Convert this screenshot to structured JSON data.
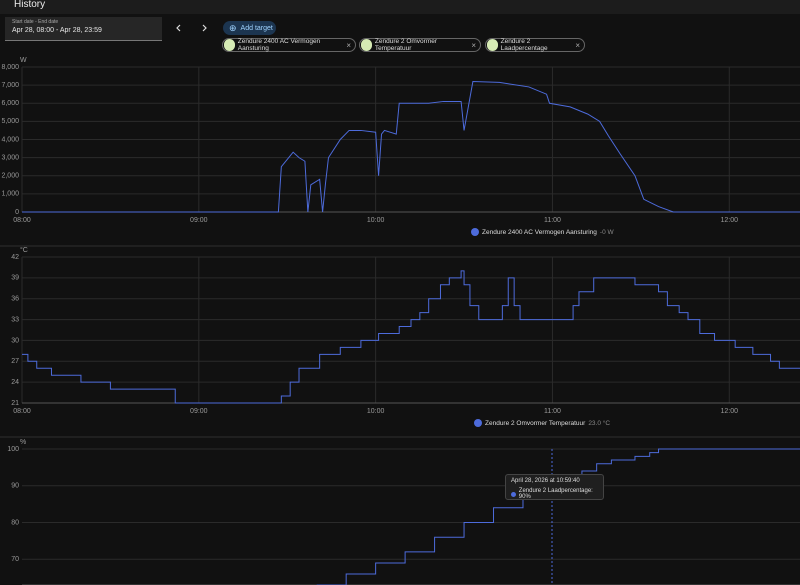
{
  "header": {
    "title": "History"
  },
  "date_picker": {
    "label": "Start date - End date",
    "value": "Apr 28, 08:00 - Apr 28, 23:59"
  },
  "add_target": "Add target",
  "targets": [
    "Zendure 2400 AC Vermogen Aansturing",
    "Zendure 2 Omvormer Temperatuur",
    "Zendure 2 Laadpercentage"
  ],
  "chart_data": [
    {
      "type": "line",
      "y_label": "W",
      "step": false,
      "grid": true,
      "x": [
        "08:00",
        "09:27",
        "09:28",
        "09:32",
        "09:34",
        "09:36",
        "09:37",
        "09:38",
        "09:41",
        "09:42",
        "09:43",
        "09:44",
        "09:48",
        "09:51",
        "09:55",
        "10:00",
        "10:01",
        "10:02",
        "10:03",
        "10:07",
        "10:08",
        "10:18",
        "10:23",
        "10:29",
        "10:30",
        "10:33",
        "10:42",
        "10:52",
        "10:58",
        "10:59",
        "11:06",
        "11:12",
        "11:16",
        "11:19",
        "11:23",
        "11:28",
        "11:31",
        "11:36",
        "11:41",
        "12:24"
      ],
      "series": [
        {
          "name": "Zendure 2400 AC Vermogen Aansturing",
          "state": "-0 W",
          "color": "#4d6bdb",
          "values": [
            0,
            0,
            2500,
            3300,
            3000,
            2800,
            0,
            1500,
            1800,
            0,
            1600,
            3000,
            4000,
            4500,
            4500,
            4400,
            2000,
            4300,
            4500,
            4300,
            6000,
            6000,
            6100,
            6100,
            4500,
            7200,
            7150,
            6900,
            6500,
            6000,
            5800,
            5400,
            5000,
            4200,
            3200,
            2000,
            700,
            300,
            0,
            0
          ]
        }
      ],
      "xlim": [
        "08:00",
        "12:24"
      ],
      "xticks": [
        "08:00",
        "09:00",
        "10:00",
        "11:00",
        "12:00"
      ],
      "ylim": [
        0,
        8000
      ],
      "yticks": [
        0,
        {
          "value": 1000,
          "label": "1,000"
        },
        {
          "value": 2000,
          "label": "2,000"
        },
        {
          "value": 3000,
          "label": "3,000"
        },
        {
          "value": 4000,
          "label": "4,000"
        },
        {
          "value": 5000,
          "label": "5,000"
        },
        {
          "value": 6000,
          "label": "6,000"
        },
        {
          "value": 7000,
          "label": "7,000"
        },
        {
          "value": 8000,
          "label": "8,000"
        }
      ]
    },
    {
      "type": "line",
      "y_label": "°C",
      "step": true,
      "grid": true,
      "x": [
        "08:00",
        "08:02",
        "08:05",
        "08:10",
        "08:20",
        "08:30",
        "08:52",
        "09:27",
        "09:28",
        "09:31",
        "09:34",
        "09:41",
        "09:48",
        "09:55",
        "10:01",
        "10:08",
        "10:12",
        "10:15",
        "10:18",
        "10:22",
        "10:25",
        "10:29",
        "10:30",
        "10:32",
        "10:35",
        "10:41",
        "10:43",
        "10:45",
        "10:47",
        "10:49",
        "11:06",
        "11:07",
        "11:09",
        "11:14",
        "11:23",
        "11:28",
        "11:36",
        "11:39",
        "11:43",
        "11:46",
        "11:50",
        "11:55",
        "12:02",
        "12:08",
        "12:14",
        "12:17",
        "12:24"
      ],
      "series": [
        {
          "name": "Zendure 2 Omvormer Temperatuur",
          "state": "23.0 °C",
          "color": "#4d6bdb",
          "values": [
            28,
            27,
            26,
            25,
            24,
            23,
            21,
            21,
            22,
            24,
            26,
            28,
            29,
            30,
            31,
            32,
            33,
            34,
            36,
            38,
            39,
            40,
            38,
            35,
            33,
            33,
            35,
            39,
            35,
            33,
            33,
            35,
            37,
            39,
            39,
            38,
            37,
            35,
            34,
            33,
            31,
            30,
            29,
            28,
            27,
            26,
            26
          ]
        }
      ],
      "xlim": [
        "08:00",
        "12:24"
      ],
      "xticks": [
        "08:00",
        "09:00",
        "10:00",
        "11:00",
        "12:00"
      ],
      "ylim": [
        21,
        42
      ],
      "yticks": [
        21,
        24,
        27,
        30,
        33,
        36,
        39,
        42
      ]
    },
    {
      "type": "line",
      "y_label": "%",
      "step": true,
      "grid": true,
      "color": "#4d6bdb",
      "x": [
        "09:40",
        "09:50",
        "10:00",
        "10:10",
        "10:20",
        "10:30",
        "10:40",
        "10:50",
        "11:00",
        "11:05",
        "11:10",
        "11:15",
        "11:20",
        "11:28",
        "11:33",
        "11:36",
        "12:24"
      ],
      "values": [
        63,
        66,
        69,
        72,
        76,
        80,
        84,
        87,
        90,
        92,
        94,
        96,
        97,
        98,
        99,
        100,
        100
      ],
      "xlim": [
        "08:00",
        "12:24"
      ],
      "ylim": [
        63,
        100
      ],
      "yticks": [
        70,
        80,
        90,
        100
      ]
    }
  ],
  "tooltip": {
    "title": "April 28, 2026 at 10:59:40",
    "text": "Zendure 2 Laadpercentage: 90%"
  }
}
